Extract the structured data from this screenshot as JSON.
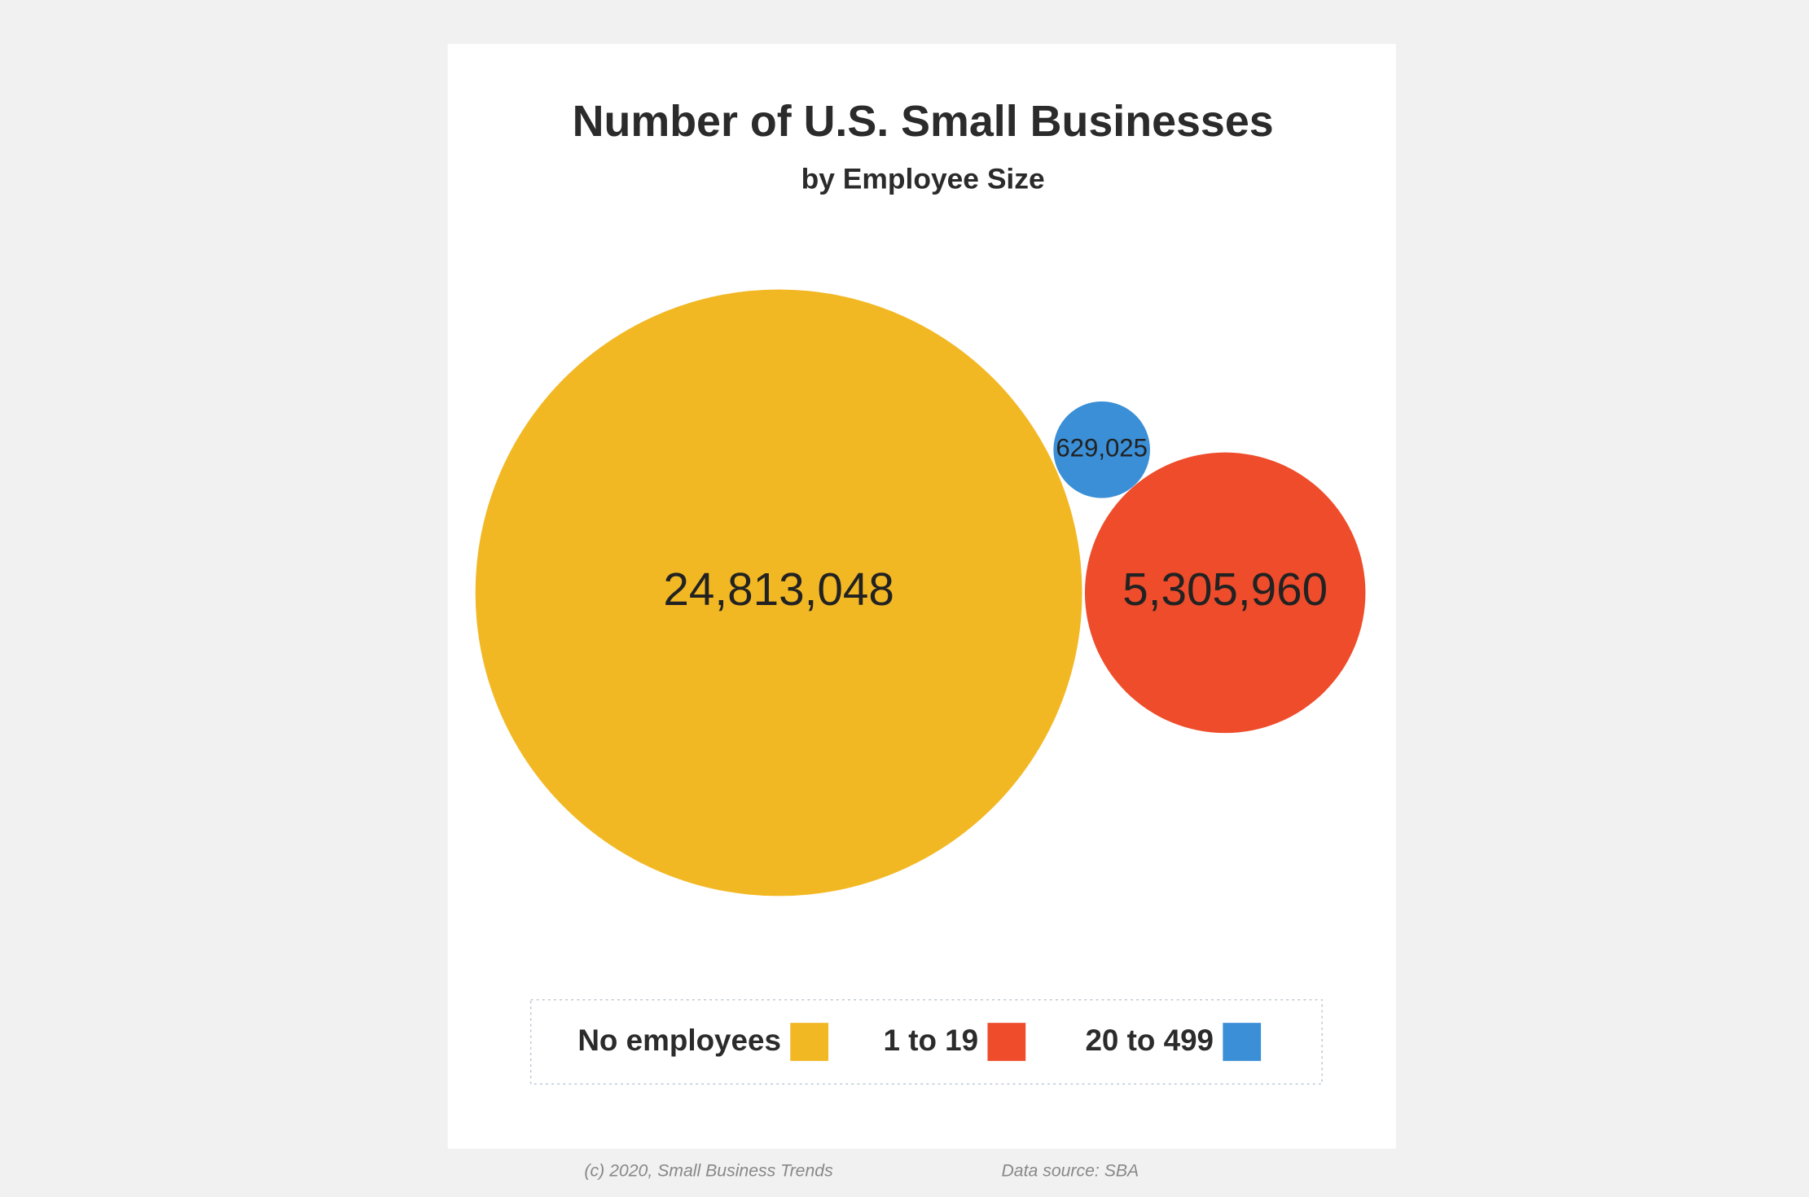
{
  "chart_data": {
    "type": "bubble",
    "title": "Number of U.S. Small Businesses",
    "subtitle": "by Employee Size",
    "categories": [
      "No employees",
      "1 to 19",
      "20 to 499"
    ],
    "values": [
      24813048,
      5305960,
      629025
    ],
    "value_labels": [
      "24,813,048",
      "5,305,960",
      "629,025"
    ],
    "colors": [
      "#f2b824",
      "#ee4c2b",
      "#3a8fd6"
    ],
    "legend": "bottom",
    "credit": "(c) 2020, Small Business Trends",
    "source": "Data source: SBA"
  }
}
